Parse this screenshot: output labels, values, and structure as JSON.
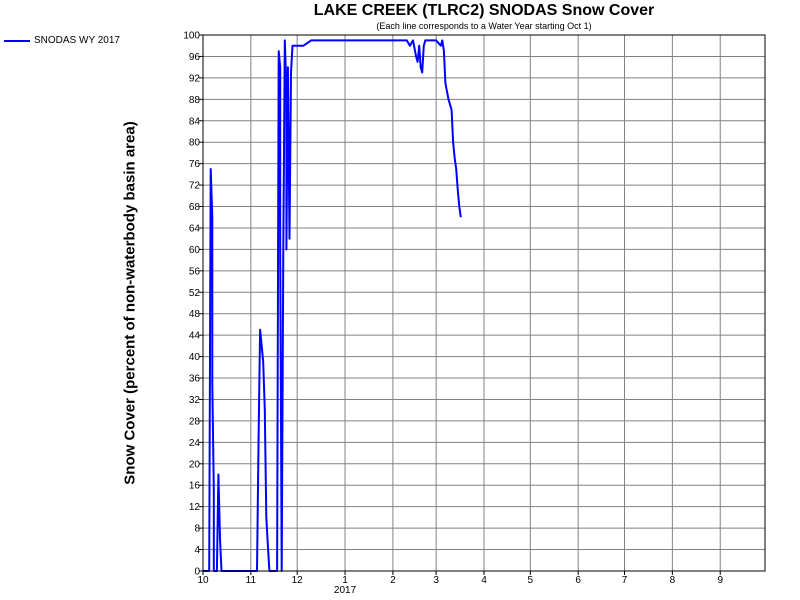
{
  "chart_data": {
    "type": "line",
    "title": "LAKE CREEK (TLRC2) SNODAS Snow Cover",
    "subtitle": "(Each line corresponds to a Water Year starting Oct 1)",
    "ylabel": "Snow Cover (percent of non-waterbody basin area)",
    "xlabel": "",
    "ylim": [
      0,
      100
    ],
    "y_ticks": [
      0,
      4,
      8,
      12,
      16,
      20,
      24,
      28,
      32,
      36,
      40,
      44,
      48,
      52,
      56,
      60,
      64,
      68,
      72,
      76,
      80,
      84,
      88,
      92,
      96,
      100
    ],
    "xlim": [
      "2016-10-01",
      "2017-09-30"
    ],
    "x_tick_labels": [
      {
        "date": "2016-10-01",
        "label": "10"
      },
      {
        "date": "2016-11-01",
        "label": "11"
      },
      {
        "date": "2016-12-01",
        "label": "12"
      },
      {
        "date": "2017-01-01",
        "label": "1"
      },
      {
        "date": "2017-02-01",
        "label": "2"
      },
      {
        "date": "2017-03-01",
        "label": "3"
      },
      {
        "date": "2017-04-01",
        "label": "4"
      },
      {
        "date": "2017-05-01",
        "label": "5"
      },
      {
        "date": "2017-06-01",
        "label": "6"
      },
      {
        "date": "2017-07-01",
        "label": "7"
      },
      {
        "date": "2017-08-01",
        "label": "8"
      },
      {
        "date": "2017-09-01",
        "label": "9"
      }
    ],
    "year_label": {
      "date": "2017-01-01",
      "label": "2017"
    },
    "grid": true,
    "legend_position": "top-left",
    "series": [
      {
        "name": "SNODAS WY 2017",
        "color": "#0000ff",
        "points": [
          [
            "2016-10-01",
            0
          ],
          [
            "2016-10-05",
            0
          ],
          [
            "2016-10-06",
            75
          ],
          [
            "2016-10-07",
            66
          ],
          [
            "2016-10-07",
            35
          ],
          [
            "2016-10-08",
            15
          ],
          [
            "2016-10-08",
            0
          ],
          [
            "2016-10-10",
            0
          ],
          [
            "2016-10-11",
            18
          ],
          [
            "2016-10-12",
            6
          ],
          [
            "2016-10-13",
            0
          ],
          [
            "2016-11-05",
            0
          ],
          [
            "2016-11-06",
            25
          ],
          [
            "2016-11-07",
            45
          ],
          [
            "2016-11-08",
            42
          ],
          [
            "2016-11-09",
            39
          ],
          [
            "2016-11-10",
            30
          ],
          [
            "2016-11-11",
            10
          ],
          [
            "2016-11-12",
            5
          ],
          [
            "2016-11-13",
            0
          ],
          [
            "2016-11-18",
            0
          ],
          [
            "2016-11-19",
            97
          ],
          [
            "2016-11-20",
            94
          ],
          [
            "2016-11-20",
            60
          ],
          [
            "2016-11-21",
            0
          ],
          [
            "2016-11-22",
            60
          ],
          [
            "2016-11-23",
            99
          ],
          [
            "2016-11-24",
            90
          ],
          [
            "2016-11-24",
            60
          ],
          [
            "2016-11-25",
            94
          ],
          [
            "2016-11-26",
            62
          ],
          [
            "2016-11-27",
            93
          ],
          [
            "2016-11-28",
            98
          ],
          [
            "2016-12-05",
            98
          ],
          [
            "2016-12-10",
            99
          ],
          [
            "2016-12-20",
            99
          ],
          [
            "2017-01-10",
            99
          ],
          [
            "2017-02-05",
            99
          ],
          [
            "2017-02-10",
            99
          ],
          [
            "2017-02-12",
            98
          ],
          [
            "2017-02-14",
            99
          ],
          [
            "2017-02-16",
            96
          ],
          [
            "2017-02-17",
            95
          ],
          [
            "2017-02-18",
            98
          ],
          [
            "2017-02-19",
            94
          ],
          [
            "2017-02-20",
            93
          ],
          [
            "2017-02-21",
            98
          ],
          [
            "2017-02-22",
            99
          ],
          [
            "2017-03-01",
            99
          ],
          [
            "2017-03-04",
            98
          ],
          [
            "2017-03-05",
            99
          ],
          [
            "2017-03-06",
            97
          ],
          [
            "2017-03-07",
            91
          ],
          [
            "2017-03-09",
            88
          ],
          [
            "2017-03-11",
            86
          ],
          [
            "2017-03-12",
            80
          ],
          [
            "2017-03-13",
            77
          ],
          [
            "2017-03-14",
            75
          ],
          [
            "2017-03-15",
            71
          ],
          [
            "2017-03-16",
            68
          ],
          [
            "2017-03-17",
            66
          ]
        ]
      }
    ]
  }
}
